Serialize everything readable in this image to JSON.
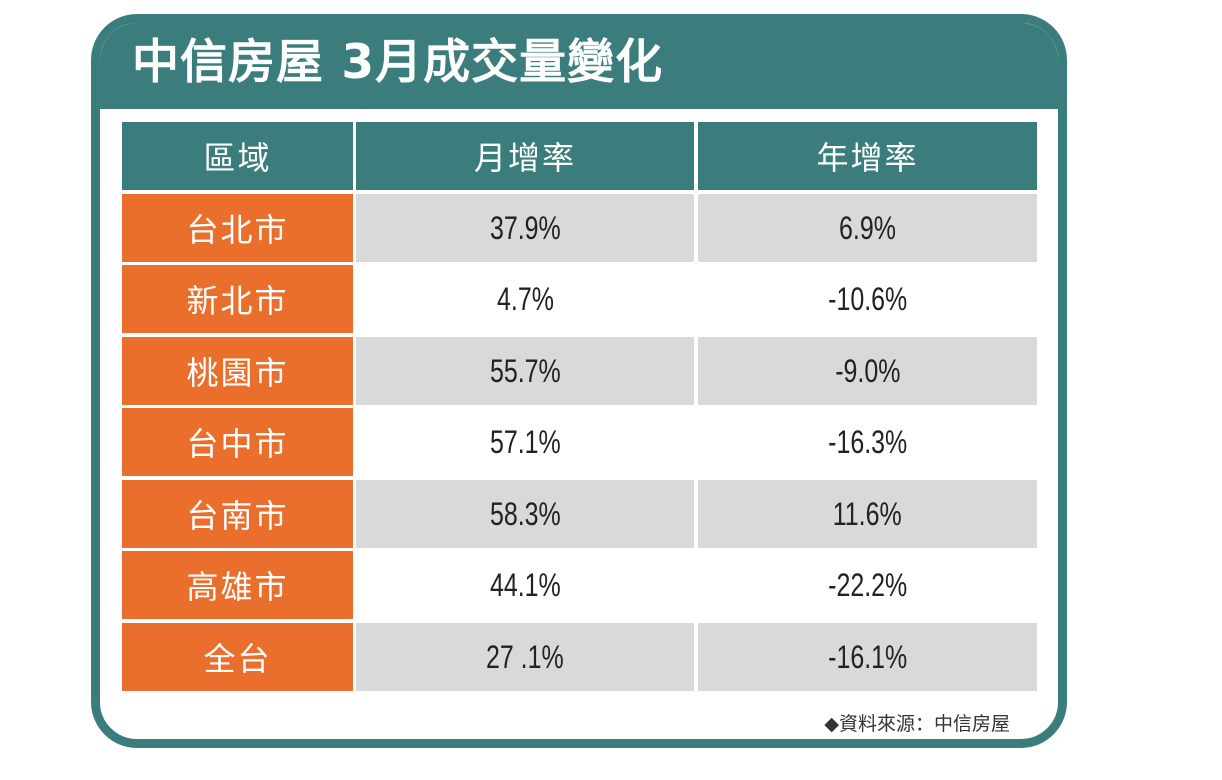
{
  "title": "中信房屋 3月成交量變化",
  "table": {
    "headers": [
      "區域",
      "月增率",
      "年增率"
    ],
    "rows": [
      {
        "region": "台北市",
        "mom": "37.9%",
        "yoy": "6.9%"
      },
      {
        "region": "新北市",
        "mom": "4.7%",
        "yoy": "-10.6%"
      },
      {
        "region": "桃園市",
        "mom": "55.7%",
        "yoy": "-9.0%"
      },
      {
        "region": "台中市",
        "mom": "57.1%",
        "yoy": "-16.3%"
      },
      {
        "region": "台南市",
        "mom": "58.3%",
        "yoy": "11.6%"
      },
      {
        "region": "高雄市",
        "mom": "44.1%",
        "yoy": "-22.2%"
      },
      {
        "region": "全台",
        "mom": "27 .1%",
        "yoy": "-16.1%"
      }
    ]
  },
  "source": "◆資料來源：中信房屋",
  "colors": {
    "teal": "#3a7d7c",
    "orange": "#ea6f2d",
    "shaded_row": "#d9d9d9"
  }
}
